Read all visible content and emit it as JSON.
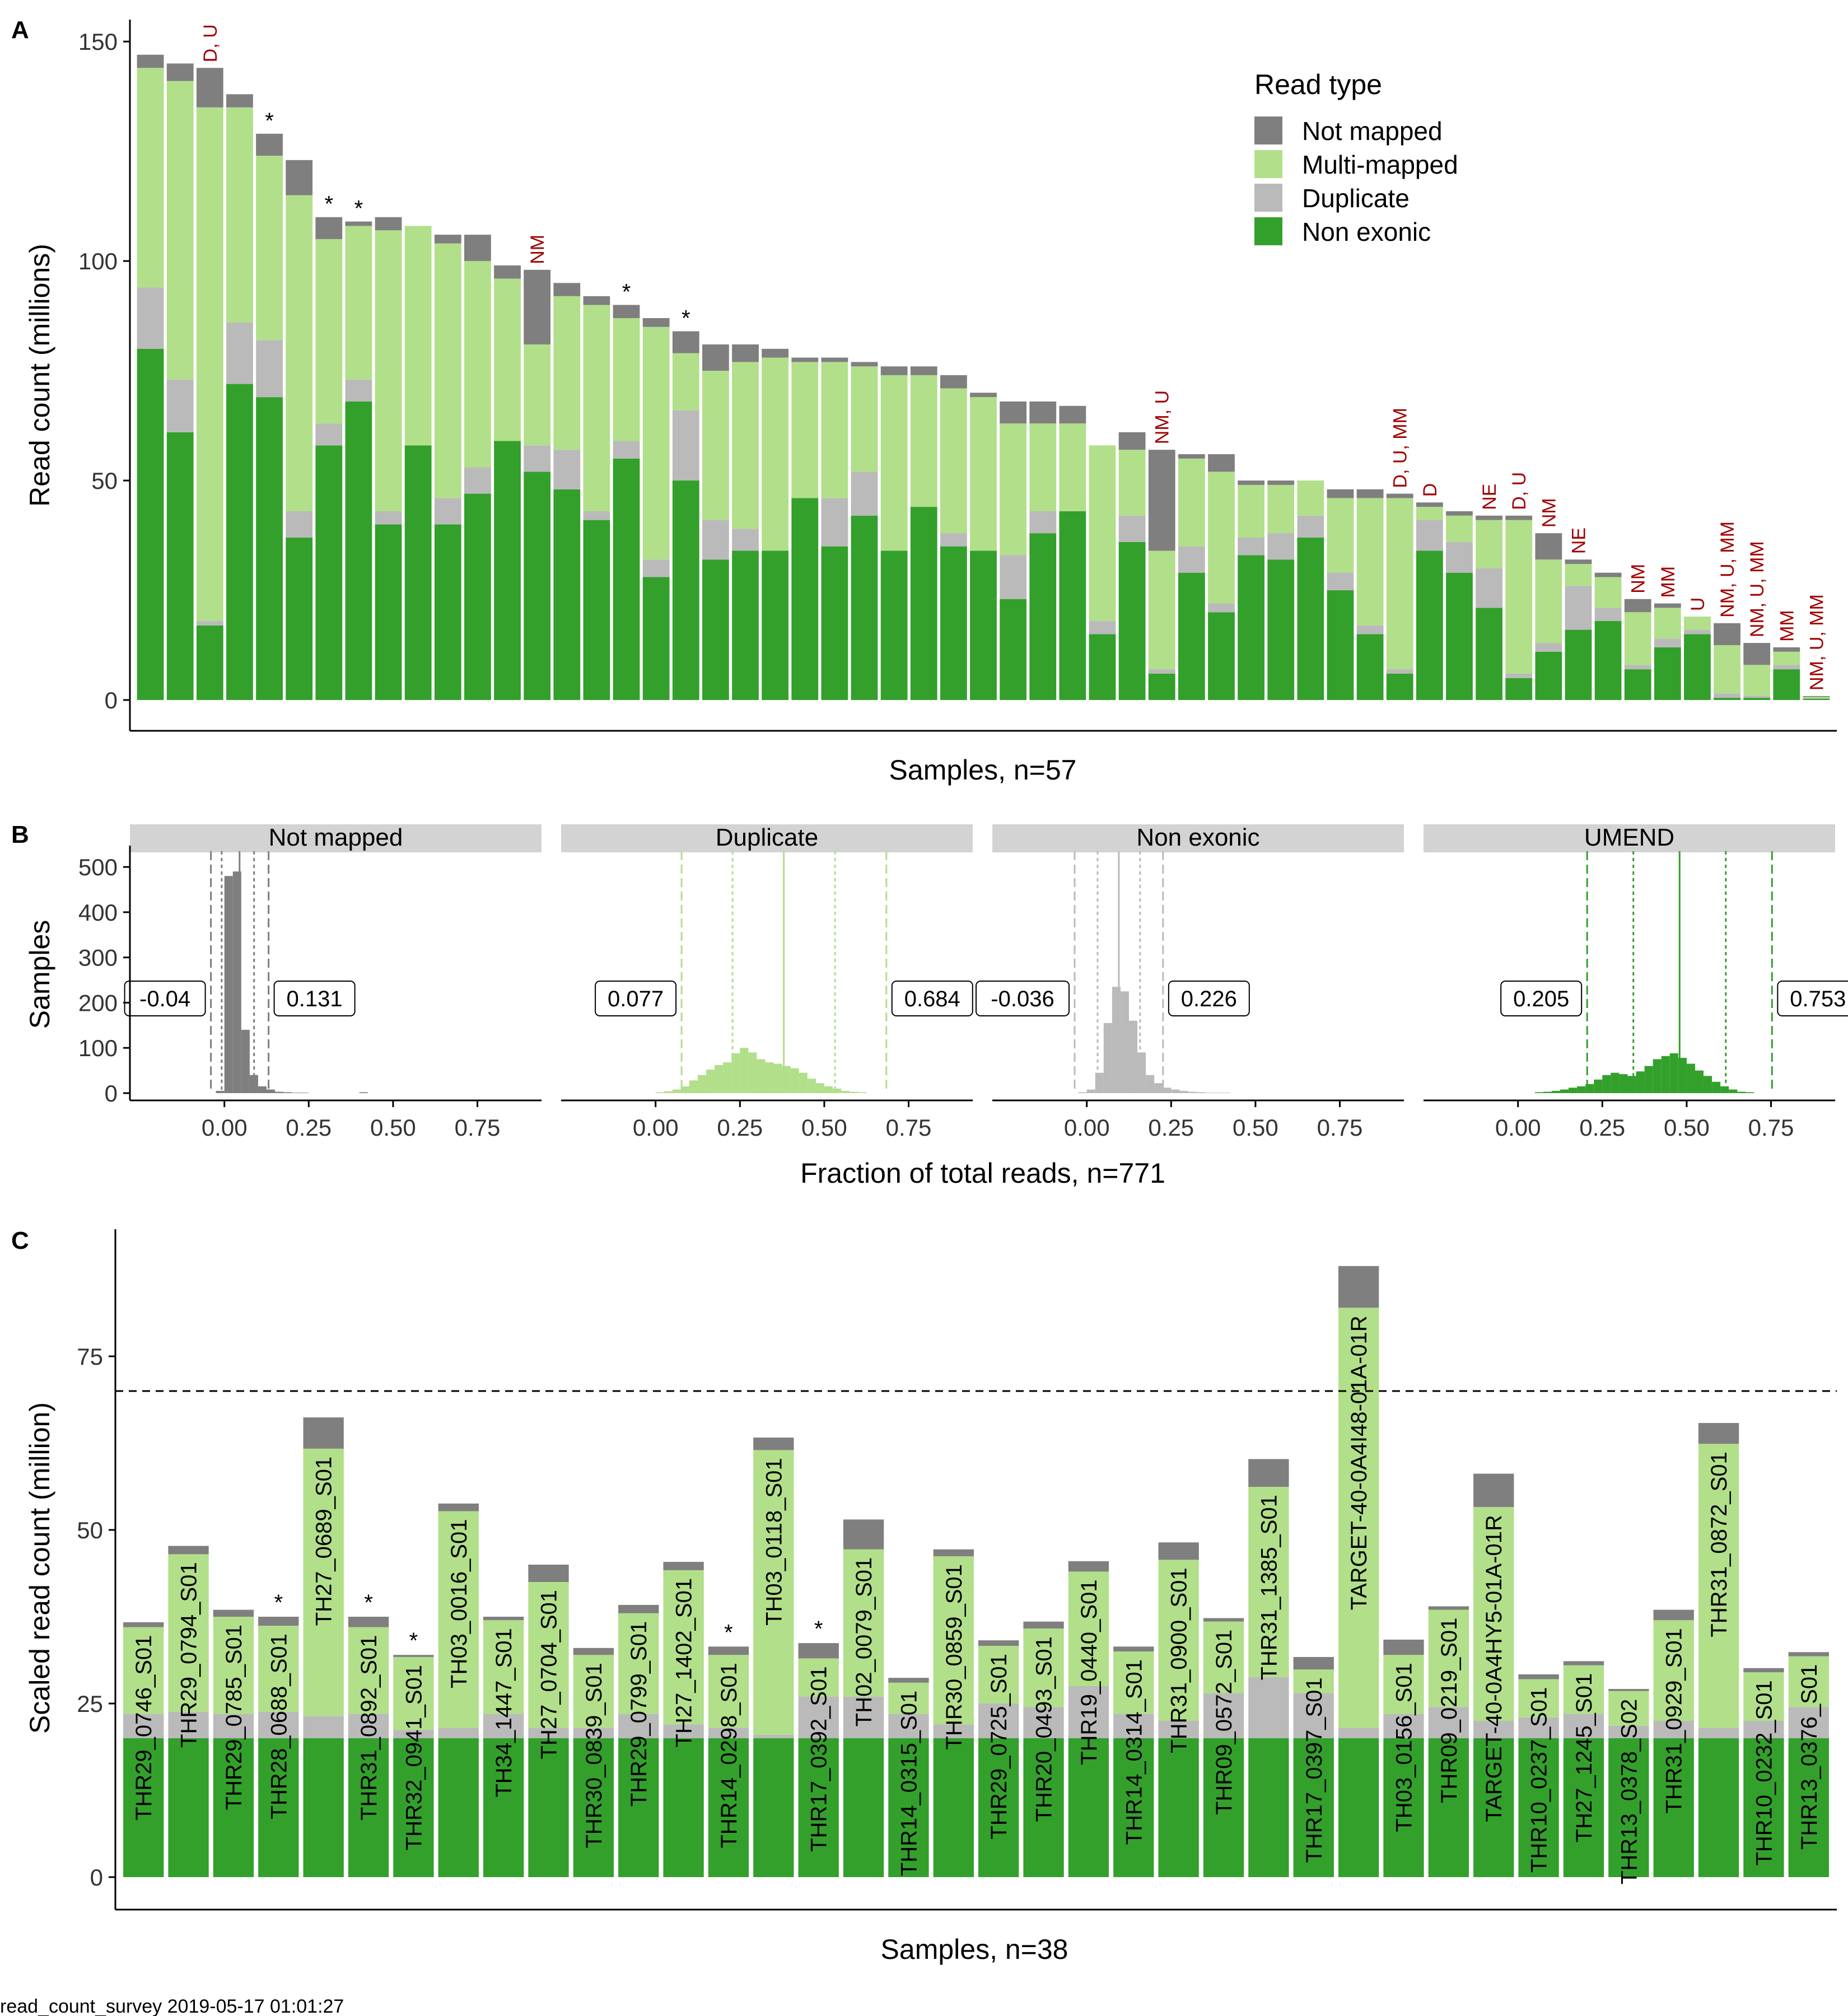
{
  "panels": {
    "a": "A",
    "b": "B",
    "c": "C"
  },
  "footer": "read_count_survey 2019-05-17 01:01:27",
  "colors": {
    "not_mapped": "#7f7f7f",
    "multi_mapped": "#b2df8a",
    "duplicate": "#bababa",
    "non_exonic": "#33a02c",
    "annotation": "#a00000",
    "strip": "#d3d3d3"
  },
  "chart_data": [
    {
      "panel": "A",
      "type": "bar",
      "stacked": true,
      "ylabel": "Read count (millions)",
      "xlabel": "Samples, n=57",
      "ylim": [
        0,
        155
      ],
      "yticks": [
        0,
        50,
        100,
        150
      ],
      "legend": {
        "title": "Read type",
        "placement": "top-right",
        "items": [
          "Not mapped",
          "Multi-mapped",
          "Duplicate",
          "Non exonic"
        ]
      },
      "stack_order_bottom_to_top": [
        "Non exonic",
        "Duplicate",
        "Multi-mapped",
        "Not mapped"
      ],
      "bars": [
        {
          "ne": 80,
          "dup": 14,
          "mm": 50,
          "nm": 3,
          "label": ""
        },
        {
          "ne": 61,
          "dup": 12,
          "mm": 68,
          "nm": 4,
          "label": ""
        },
        {
          "ne": 17,
          "dup": 1,
          "mm": 117,
          "nm": 9,
          "label": "D, U"
        },
        {
          "ne": 72,
          "dup": 14,
          "mm": 49,
          "nm": 3,
          "label": ""
        },
        {
          "ne": 69,
          "dup": 13,
          "mm": 42,
          "nm": 5,
          "label": "*"
        },
        {
          "ne": 37,
          "dup": 6,
          "mm": 72,
          "nm": 8,
          "label": ""
        },
        {
          "ne": 58,
          "dup": 5,
          "mm": 42,
          "nm": 5,
          "label": "*"
        },
        {
          "ne": 68,
          "dup": 5,
          "mm": 35,
          "nm": 1,
          "label": "*"
        },
        {
          "ne": 40,
          "dup": 3,
          "mm": 64,
          "nm": 3,
          "label": ""
        },
        {
          "ne": 58,
          "dup": 0,
          "mm": 50,
          "nm": 0,
          "label": ""
        },
        {
          "ne": 40,
          "dup": 6,
          "mm": 58,
          "nm": 2,
          "label": ""
        },
        {
          "ne": 47,
          "dup": 6,
          "mm": 47,
          "nm": 6,
          "label": ""
        },
        {
          "ne": 59,
          "dup": 0,
          "mm": 37,
          "nm": 3,
          "label": ""
        },
        {
          "ne": 52,
          "dup": 6,
          "mm": 23,
          "nm": 17,
          "label": "NM"
        },
        {
          "ne": 48,
          "dup": 9,
          "mm": 35,
          "nm": 3,
          "label": ""
        },
        {
          "ne": 41,
          "dup": 2,
          "mm": 47,
          "nm": 2,
          "label": ""
        },
        {
          "ne": 55,
          "dup": 4,
          "mm": 28,
          "nm": 3,
          "label": "*"
        },
        {
          "ne": 28,
          "dup": 4,
          "mm": 53,
          "nm": 2,
          "label": ""
        },
        {
          "ne": 50,
          "dup": 16,
          "mm": 13,
          "nm": 5,
          "label": "*"
        },
        {
          "ne": 32,
          "dup": 9,
          "mm": 34,
          "nm": 6,
          "label": ""
        },
        {
          "ne": 34,
          "dup": 5,
          "mm": 38,
          "nm": 4,
          "label": ""
        },
        {
          "ne": 34,
          "dup": 0,
          "mm": 44,
          "nm": 2,
          "label": ""
        },
        {
          "ne": 46,
          "dup": 0,
          "mm": 31,
          "nm": 1,
          "label": ""
        },
        {
          "ne": 35,
          "dup": 11,
          "mm": 31,
          "nm": 1,
          "label": ""
        },
        {
          "ne": 42,
          "dup": 10,
          "mm": 24,
          "nm": 1,
          "label": ""
        },
        {
          "ne": 34,
          "dup": 0,
          "mm": 40,
          "nm": 2,
          "label": ""
        },
        {
          "ne": 44,
          "dup": 0,
          "mm": 30,
          "nm": 2,
          "label": ""
        },
        {
          "ne": 35,
          "dup": 3,
          "mm": 33,
          "nm": 3,
          "label": ""
        },
        {
          "ne": 34,
          "dup": 0,
          "mm": 35,
          "nm": 1,
          "label": ""
        },
        {
          "ne": 23,
          "dup": 10,
          "mm": 30,
          "nm": 5,
          "label": ""
        },
        {
          "ne": 38,
          "dup": 5,
          "mm": 20,
          "nm": 5,
          "label": ""
        },
        {
          "ne": 43,
          "dup": 0,
          "mm": 20,
          "nm": 4,
          "label": ""
        },
        {
          "ne": 15,
          "dup": 3,
          "mm": 40,
          "nm": 0,
          "label": ""
        },
        {
          "ne": 36,
          "dup": 6,
          "mm": 15,
          "nm": 4,
          "label": ""
        },
        {
          "ne": 6,
          "dup": 1,
          "mm": 27,
          "nm": 23,
          "label": "NM, U"
        },
        {
          "ne": 29,
          "dup": 6,
          "mm": 20,
          "nm": 1,
          "label": ""
        },
        {
          "ne": 20,
          "dup": 2,
          "mm": 30,
          "nm": 4,
          "label": ""
        },
        {
          "ne": 33,
          "dup": 4,
          "mm": 12,
          "nm": 1,
          "label": ""
        },
        {
          "ne": 32,
          "dup": 6,
          "mm": 11,
          "nm": 1,
          "label": ""
        },
        {
          "ne": 37,
          "dup": 5,
          "mm": 8,
          "nm": 0,
          "label": ""
        },
        {
          "ne": 25,
          "dup": 4,
          "mm": 17,
          "nm": 2,
          "label": ""
        },
        {
          "ne": 15,
          "dup": 2,
          "mm": 29,
          "nm": 2,
          "label": ""
        },
        {
          "ne": 6,
          "dup": 1,
          "mm": 39,
          "nm": 1,
          "label": "D, U, MM"
        },
        {
          "ne": 34,
          "dup": 7,
          "mm": 3,
          "nm": 1,
          "label": "D"
        },
        {
          "ne": 29,
          "dup": 7,
          "mm": 6,
          "nm": 1,
          "label": ""
        },
        {
          "ne": 21,
          "dup": 9,
          "mm": 11,
          "nm": 1,
          "label": "NE"
        },
        {
          "ne": 5,
          "dup": 1,
          "mm": 35,
          "nm": 1,
          "label": "D, U"
        },
        {
          "ne": 11,
          "dup": 2,
          "mm": 19,
          "nm": 6,
          "label": "NM"
        },
        {
          "ne": 16,
          "dup": 10,
          "mm": 5,
          "nm": 1,
          "label": "NE"
        },
        {
          "ne": 18,
          "dup": 3,
          "mm": 7,
          "nm": 1,
          "label": ""
        },
        {
          "ne": 7,
          "dup": 1,
          "mm": 12,
          "nm": 3,
          "label": "NM"
        },
        {
          "ne": 12,
          "dup": 2,
          "mm": 7,
          "nm": 1,
          "label": "MM"
        },
        {
          "ne": 15,
          "dup": 1,
          "mm": 3,
          "nm": 0,
          "label": "U"
        },
        {
          "ne": 0.5,
          "dup": 1,
          "mm": 11,
          "nm": 5,
          "label": "NM, U, MM"
        },
        {
          "ne": 0.5,
          "dup": 0.5,
          "mm": 7,
          "nm": 5,
          "label": "NM, U, MM"
        },
        {
          "ne": 7,
          "dup": 1,
          "mm": 3,
          "nm": 1,
          "label": "MM"
        },
        {
          "ne": 0.3,
          "dup": 0.1,
          "mm": 0.3,
          "nm": 0.2,
          "label": "NM, U, MM"
        }
      ]
    },
    {
      "panel": "B",
      "type": "bar",
      "subtype": "histogram-facets",
      "ylabel": "Samples",
      "xlabel": "Fraction of total reads, n=771",
      "ylim": [
        0,
        520
      ],
      "yticks": [
        0,
        100,
        200,
        300,
        400,
        500
      ],
      "xlim": [
        -0.28,
        0.94
      ],
      "xticks": [
        "0.00",
        "0.25",
        "0.50",
        "0.75"
      ],
      "xtick_values": [
        0,
        0.25,
        0.5,
        0.75
      ],
      "bin_width": 0.025,
      "facets": [
        {
          "strip": "Not mapped",
          "color_key": "not_mapped",
          "bin_start": -0.025,
          "counts": [
            5,
            480,
            490,
            140,
            40,
            15,
            8,
            3,
            2,
            1,
            1,
            0,
            0,
            0,
            0,
            0,
            0,
            2
          ],
          "median": 0.045,
          "inner_lines": [
            -0.008,
            0.088
          ],
          "outer_lines": [
            -0.04,
            0.131
          ],
          "labels": [
            "-0.04",
            "0.131"
          ]
        },
        {
          "strip": "Duplicate",
          "color_key": "multi_mapped",
          "bin_start": 0,
          "counts": [
            2,
            4,
            8,
            15,
            28,
            40,
            52,
            62,
            68,
            88,
            100,
            90,
            75,
            68,
            65,
            60,
            55,
            45,
            32,
            22,
            15,
            10,
            5,
            3,
            2
          ],
          "median": 0.38,
          "inner_lines": [
            0.228,
            0.532
          ],
          "outer_lines": [
            0.077,
            0.684
          ],
          "labels": [
            "0.077",
            "0.684"
          ]
        },
        {
          "strip": "Non exonic",
          "color_key": "duplicate",
          "bin_start": -0.025,
          "counts": [
            2,
            8,
            45,
            155,
            235,
            225,
            160,
            90,
            40,
            22,
            12,
            8,
            5,
            3,
            2,
            1,
            1,
            1
          ],
          "median": 0.095,
          "inner_lines": [
            0.032,
            0.158
          ],
          "outer_lines": [
            -0.036,
            0.226
          ],
          "labels": [
            "-0.036",
            "0.226"
          ]
        },
        {
          "strip": "UMEND",
          "color_key": "non_exonic",
          "bin_start": 0.05,
          "counts": [
            2,
            3,
            5,
            8,
            12,
            15,
            20,
            30,
            40,
            45,
            42,
            38,
            48,
            60,
            75,
            82,
            88,
            78,
            65,
            50,
            38,
            25,
            15,
            8,
            3,
            2
          ],
          "median": 0.479,
          "inner_lines": [
            0.342,
            0.616
          ],
          "outer_lines": [
            0.205,
            0.753
          ],
          "labels": [
            "0.205",
            "0.753"
          ]
        }
      ]
    },
    {
      "panel": "C",
      "type": "bar",
      "stacked": true,
      "ylabel": "Scaled read count (million)",
      "xlabel": "Samples, n=38",
      "ylim": [
        -2,
        92
      ],
      "yticks": [
        0,
        25,
        50,
        75
      ],
      "threshold": 70,
      "stack_order_bottom_to_top": [
        "Non exonic",
        "Duplicate",
        "Multi-mapped",
        "Not mapped"
      ],
      "bars": [
        {
          "name": "THR29_0746_S01",
          "ne": 20,
          "dup": 3.5,
          "mm": 12.5,
          "nm": 0.7,
          "mark": ""
        },
        {
          "name": "THR29_0794_S01",
          "ne": 20,
          "dup": 3.8,
          "mm": 22.7,
          "nm": 1.2,
          "mark": ""
        },
        {
          "name": "THR29_0785_S01",
          "ne": 20,
          "dup": 3.5,
          "mm": 14,
          "nm": 1,
          "mark": ""
        },
        {
          "name": "THR28_0688_S01",
          "ne": 20,
          "dup": 3.8,
          "mm": 12.4,
          "nm": 1.3,
          "mark": "*"
        },
        {
          "name": "TH27_0689_S01",
          "ne": 20,
          "dup": 3.2,
          "mm": 38.5,
          "nm": 4.5,
          "mark": ""
        },
        {
          "name": "THR31_0892_S01",
          "ne": 20,
          "dup": 3.5,
          "mm": 12.5,
          "nm": 1.5,
          "mark": "*"
        },
        {
          "name": "THR32_0941_S01",
          "ne": 20,
          "dup": 1.2,
          "mm": 10.5,
          "nm": 0.3,
          "mark": "*"
        },
        {
          "name": "TH03_0016_S01",
          "ne": 20,
          "dup": 1.5,
          "mm": 31.2,
          "nm": 1.1,
          "mark": ""
        },
        {
          "name": "TH34_1447_S01",
          "ne": 20,
          "dup": 3.5,
          "mm": 13.5,
          "nm": 0.5,
          "mark": ""
        },
        {
          "name": "TH27_0704_S01",
          "ne": 20,
          "dup": 1.5,
          "mm": 21,
          "nm": 2.5,
          "mark": ""
        },
        {
          "name": "THR30_0839_S01",
          "ne": 20,
          "dup": 1.5,
          "mm": 10.5,
          "nm": 1,
          "mark": ""
        },
        {
          "name": "THR29_0799_S01",
          "ne": 20,
          "dup": 3.5,
          "mm": 14.5,
          "nm": 1.2,
          "mark": ""
        },
        {
          "name": "TH27_1402_S01",
          "ne": 20,
          "dup": 2,
          "mm": 22.2,
          "nm": 1.2,
          "mark": ""
        },
        {
          "name": "THR14_0298_S01",
          "ne": 20,
          "dup": 1.5,
          "mm": 10.5,
          "nm": 1.2,
          "mark": "*"
        },
        {
          "name": "TH03_0118_S01",
          "ne": 20,
          "dup": 0.5,
          "mm": 41,
          "nm": 1.8,
          "mark": ""
        },
        {
          "name": "THR17_0392_S01",
          "ne": 20,
          "dup": 6,
          "mm": 5.5,
          "nm": 2.2,
          "mark": "*"
        },
        {
          "name": "TH02_0079_S01",
          "ne": 20,
          "dup": 6,
          "mm": 21.2,
          "nm": 4.3,
          "mark": ""
        },
        {
          "name": "THR14_0315_S01",
          "ne": 20,
          "dup": 3.5,
          "mm": 4.5,
          "nm": 0.7,
          "mark": ""
        },
        {
          "name": "THR30_0859_S01",
          "ne": 20,
          "dup": 2,
          "mm": 24.2,
          "nm": 1,
          "mark": ""
        },
        {
          "name": "THR29_0725_S01",
          "ne": 20,
          "dup": 5,
          "mm": 8.3,
          "nm": 0.8,
          "mark": ""
        },
        {
          "name": "THR20_0493_S01",
          "ne": 20,
          "dup": 4.5,
          "mm": 11.3,
          "nm": 1,
          "mark": ""
        },
        {
          "name": "THR19_0440_S01",
          "ne": 20,
          "dup": 7.5,
          "mm": 16.5,
          "nm": 1.5,
          "mark": ""
        },
        {
          "name": "THR14_0314_S01",
          "ne": 20,
          "dup": 3.5,
          "mm": 9,
          "nm": 0.7,
          "mark": ""
        },
        {
          "name": "THR31_0900_S01",
          "ne": 20,
          "dup": 2.5,
          "mm": 23.2,
          "nm": 2.5,
          "mark": ""
        },
        {
          "name": "THR09_0572_S01",
          "ne": 20,
          "dup": 6.5,
          "mm": 10.3,
          "nm": 0.5,
          "mark": ""
        },
        {
          "name": "THR31_1385_S01",
          "ne": 20,
          "dup": 8.8,
          "mm": 27.4,
          "nm": 4,
          "mark": ""
        },
        {
          "name": "THR17_0397_S01",
          "ne": 20,
          "dup": 6.5,
          "mm": 3.4,
          "nm": 1.8,
          "mark": ""
        },
        {
          "name": "TARGET-40-0A4I48-01A-01R",
          "ne": 20,
          "dup": 1.5,
          "mm": 60.5,
          "nm": 6,
          "mark": ""
        },
        {
          "name": "TH03_0156_S01",
          "ne": 20,
          "dup": 3.5,
          "mm": 8.5,
          "nm": 2.2,
          "mark": ""
        },
        {
          "name": "THR09_0219_S01",
          "ne": 20,
          "dup": 4.5,
          "mm": 14,
          "nm": 0.5,
          "mark": ""
        },
        {
          "name": "TARGET-40-0A4HY5-01A-01R",
          "ne": 20,
          "dup": 2.5,
          "mm": 30.8,
          "nm": 4.8,
          "mark": ""
        },
        {
          "name": "THR10_0237_S01",
          "ne": 20,
          "dup": 3,
          "mm": 5.5,
          "nm": 0.7,
          "mark": ""
        },
        {
          "name": "TH27_1245_S01",
          "ne": 20,
          "dup": 3.5,
          "mm": 7,
          "nm": 0.6,
          "mark": ""
        },
        {
          "name": "THR13_0378_S02",
          "ne": 20,
          "dup": 1.8,
          "mm": 5,
          "nm": 0.3,
          "mark": ""
        },
        {
          "name": "THR31_0929_S01",
          "ne": 20,
          "dup": 2.5,
          "mm": 14.5,
          "nm": 1.5,
          "mark": ""
        },
        {
          "name": "THR31_0872_S01",
          "ne": 20,
          "dup": 1.5,
          "mm": 40.9,
          "nm": 3,
          "mark": ""
        },
        {
          "name": "THR10_0232_S01",
          "ne": 20,
          "dup": 2.5,
          "mm": 7,
          "nm": 0.6,
          "mark": ""
        },
        {
          "name": "THR13_0376_S01",
          "ne": 20,
          "dup": 4.5,
          "mm": 7.3,
          "nm": 0.6,
          "mark": ""
        }
      ]
    }
  ]
}
